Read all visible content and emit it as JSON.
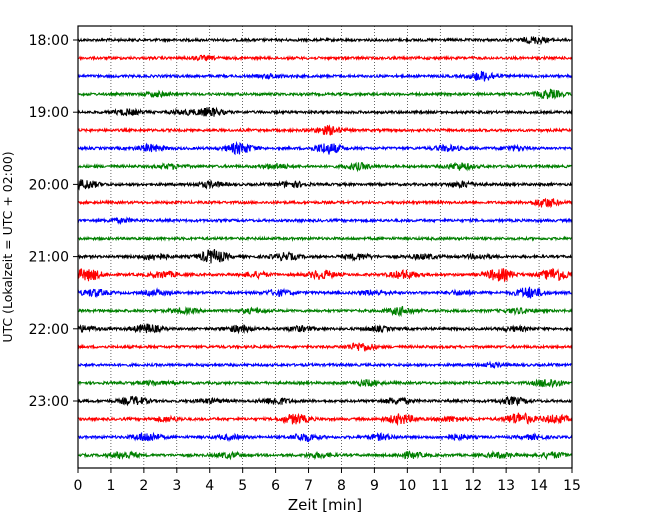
{
  "chart_data": {
    "type": "line",
    "title": "",
    "xlabel": "Zeit  [min]",
    "ylabel": "UTC (Lokalzeit = UTC + 02:00)",
    "xlim": [
      0,
      15
    ],
    "x_ticks": [
      0,
      1,
      2,
      3,
      4,
      5,
      6,
      7,
      8,
      9,
      10,
      11,
      12,
      13,
      14,
      15
    ],
    "y_tick_labels": [
      "18:00",
      "19:00",
      "20:00",
      "21:00",
      "22:00",
      "23:00"
    ],
    "y_tick_start_row": 0,
    "y_tick_every_rows": 4,
    "rows": 24,
    "grid_vertical": true,
    "trace_colors": [
      "#000000",
      "#ff0000",
      "#0000ff",
      "#008000"
    ],
    "traces": [
      {
        "start": "18:00",
        "bursts": [
          [
            13.9,
            0.9
          ]
        ]
      },
      {
        "start": "18:15",
        "bursts": [
          [
            3.8,
            0.5
          ]
        ]
      },
      {
        "start": "18:30",
        "bursts": [
          [
            12.3,
            1.4
          ],
          [
            5.9,
            0.5
          ]
        ]
      },
      {
        "start": "18:45",
        "bursts": [
          [
            14.3,
            1.2
          ],
          [
            2.4,
            0.6
          ]
        ]
      },
      {
        "start": "19:00",
        "bursts": [
          [
            4.0,
            1.2
          ],
          [
            1.5,
            0.8
          ],
          [
            3.2,
            0.6
          ]
        ]
      },
      {
        "start": "19:15",
        "bursts": [
          [
            7.6,
            1.2
          ]
        ]
      },
      {
        "start": "19:30",
        "bursts": [
          [
            4.9,
            1.6
          ],
          [
            7.6,
            1.6
          ],
          [
            2.2,
            1.0
          ],
          [
            11.2,
            0.8
          ],
          [
            13.2,
            0.6
          ]
        ]
      },
      {
        "start": "19:45",
        "bursts": [
          [
            11.6,
            1.0
          ],
          [
            8.5,
            0.9
          ],
          [
            2.8,
            0.6
          ],
          [
            6.0,
            0.7
          ]
        ]
      },
      {
        "start": "20:00",
        "bursts": [
          [
            0.2,
            1.3
          ],
          [
            4.0,
            0.8
          ],
          [
            6.5,
            0.8
          ],
          [
            11.7,
            0.8
          ]
        ]
      },
      {
        "start": "20:15",
        "bursts": [
          [
            14.2,
            1.3
          ]
        ]
      },
      {
        "start": "20:30",
        "bursts": [
          [
            1.3,
            0.5
          ]
        ]
      },
      {
        "start": "20:45",
        "bursts": []
      },
      {
        "start": "21:00",
        "bursts": [
          [
            4.1,
            2.0
          ],
          [
            2.3,
            0.9
          ],
          [
            6.3,
            1.0
          ],
          [
            8.5,
            0.8
          ],
          [
            10.5,
            0.7
          ],
          [
            12.2,
            0.6
          ]
        ]
      },
      {
        "start": "21:15",
        "bursts": [
          [
            0.3,
            1.7
          ],
          [
            12.8,
            1.8
          ],
          [
            14.5,
            1.9
          ],
          [
            7.4,
            1.3
          ],
          [
            9.9,
            1.2
          ],
          [
            2.6,
            0.9
          ],
          [
            5.4,
            0.8
          ]
        ]
      },
      {
        "start": "21:30",
        "bursts": [
          [
            13.7,
            1.6
          ],
          [
            0.5,
            1.0
          ],
          [
            2.4,
            0.7
          ],
          [
            6.1,
            0.8
          ],
          [
            9.0,
            0.7
          ],
          [
            11.6,
            0.6
          ]
        ]
      },
      {
        "start": "21:45",
        "bursts": [
          [
            9.8,
            1.1
          ],
          [
            3.2,
            0.7
          ],
          [
            5.3,
            0.6
          ],
          [
            13.4,
            0.7
          ]
        ]
      },
      {
        "start": "22:00",
        "bursts": [
          [
            2.1,
            1.3
          ],
          [
            4.9,
            0.9
          ],
          [
            0.2,
            0.8
          ],
          [
            6.7,
            0.7
          ],
          [
            9.1,
            0.6
          ],
          [
            13.3,
            0.6
          ]
        ]
      },
      {
        "start": "22:15",
        "bursts": [
          [
            8.6,
            1.2
          ]
        ]
      },
      {
        "start": "22:30",
        "bursts": [
          [
            12.6,
            0.5
          ]
        ]
      },
      {
        "start": "22:45",
        "bursts": [
          [
            14.3,
            1.3
          ],
          [
            8.8,
            0.8
          ],
          [
            2.3,
            0.5
          ]
        ]
      },
      {
        "start": "23:00",
        "bursts": [
          [
            1.7,
            1.2
          ],
          [
            6.0,
            1.0
          ],
          [
            9.7,
            0.8
          ],
          [
            13.2,
            1.0
          ],
          [
            4.0,
            0.6
          ]
        ]
      },
      {
        "start": "23:15",
        "bursts": [
          [
            13.4,
            1.8
          ],
          [
            6.6,
            1.4
          ],
          [
            9.8,
            1.4
          ],
          [
            2.7,
            0.7
          ],
          [
            11.3,
            0.7
          ],
          [
            14.5,
            1.2
          ]
        ]
      },
      {
        "start": "23:30",
        "bursts": [
          [
            2.1,
            1.3
          ],
          [
            6.9,
            1.1
          ],
          [
            9.2,
            0.8
          ],
          [
            4.6,
            0.6
          ],
          [
            11.5,
            0.7
          ],
          [
            13.8,
            0.6
          ]
        ]
      },
      {
        "start": "23:45",
        "bursts": [
          [
            1.4,
            1.0
          ],
          [
            4.6,
            0.7
          ],
          [
            7.3,
            0.7
          ],
          [
            10.1,
            0.8
          ],
          [
            12.8,
            0.7
          ],
          [
            14.4,
            0.8
          ]
        ]
      }
    ]
  }
}
